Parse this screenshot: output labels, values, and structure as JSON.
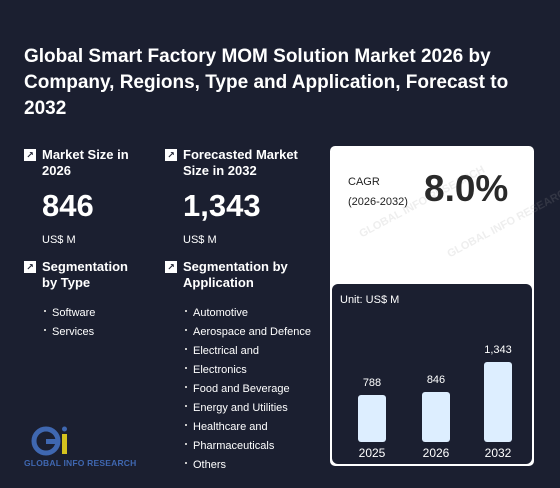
{
  "title": "Global Smart Factory MOM Solution Market 2026 by Company, Regions, Type and Application, Forecast to 2032",
  "market_size": {
    "label": "Market Size in 2026",
    "value": "846",
    "unit": "US$ M"
  },
  "forecast": {
    "label": "Forecasted Market Size in 2032",
    "value": "1,343",
    "unit": "US$ M"
  },
  "cagr": {
    "label_line1": "CAGR",
    "label_line2": "(2026-2032)",
    "value": "8.0%"
  },
  "segment_type": {
    "label": "Segmentation by Type",
    "items": [
      "Software",
      "Services"
    ]
  },
  "segment_app": {
    "label": "Segmentation by Application",
    "items": [
      "Automotive",
      "Aerospace and Defence",
      "Electrical and",
      "Electronics",
      "Food and Beverage",
      "Energy and Utilities",
      "Healthcare and",
      "Pharmaceuticals",
      "Others"
    ]
  },
  "logo_text": "GLOBAL INFO RESEARCH",
  "chart_data": {
    "type": "bar",
    "unit_label": "Unit: US$ M",
    "categories": [
      "2025",
      "2026",
      "2032"
    ],
    "values": [
      788,
      846,
      1343
    ],
    "value_labels": [
      "788",
      "846",
      "1,343"
    ],
    "bar_color": "#ddeeff"
  }
}
